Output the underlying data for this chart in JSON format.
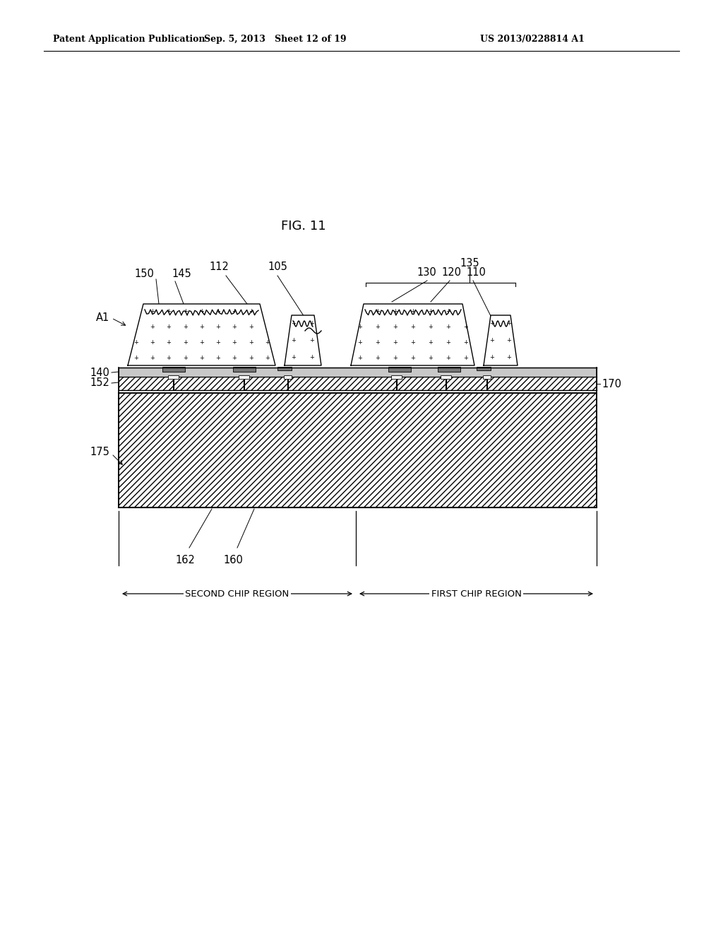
{
  "header_left": "Patent Application Publication",
  "header_center": "Sep. 5, 2013   Sheet 12 of 19",
  "header_right": "US 2013/0228814 A1",
  "fig_label": "FIG. 11",
  "bg_color": "#ffffff",
  "label_150": "150",
  "label_145": "145",
  "label_112": "112",
  "label_105": "105",
  "label_135": "135",
  "label_130": "130",
  "label_120": "120",
  "label_110": "110",
  "label_A1": "A1",
  "label_140": "140",
  "label_152": "152",
  "label_170": "170",
  "label_175": "175",
  "label_162": "162",
  "label_160": "160",
  "label_second": "SECOND CHIP REGION",
  "label_first": "FIRST CHIP REGION"
}
